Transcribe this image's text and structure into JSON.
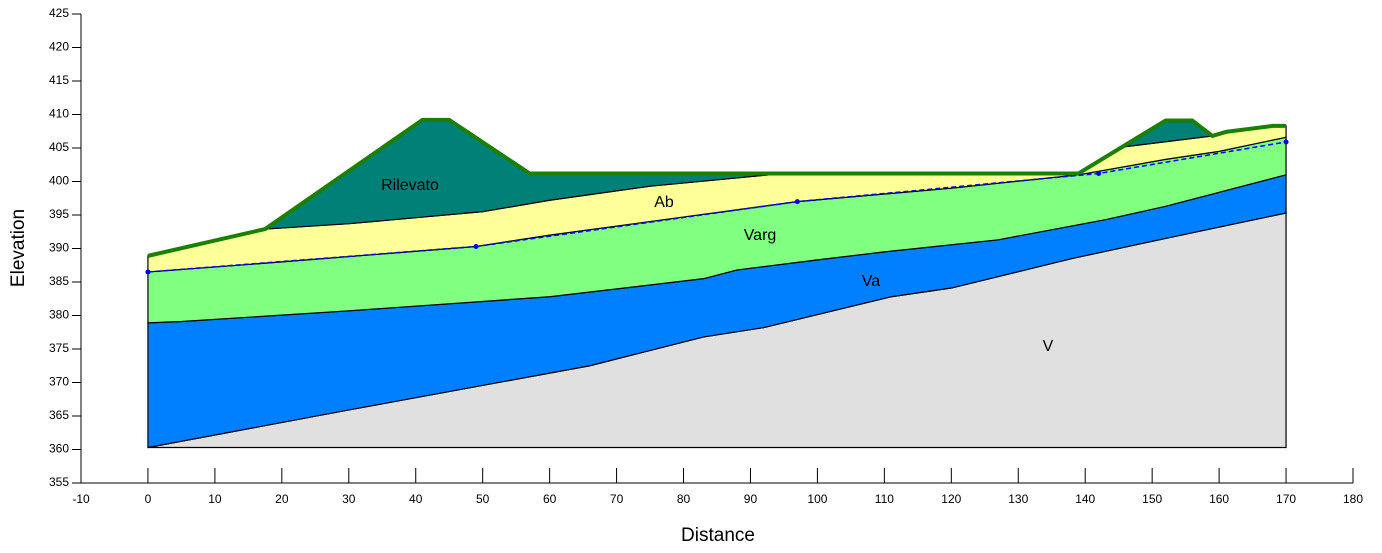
{
  "chart_data": {
    "type": "section",
    "xlabel": "Distance",
    "ylabel": "Elevation",
    "xlim": [
      -10,
      180
    ],
    "ylim": [
      355,
      425
    ],
    "xticks": [
      -10,
      0,
      10,
      20,
      30,
      40,
      50,
      60,
      70,
      80,
      90,
      100,
      110,
      120,
      130,
      140,
      150,
      160,
      170,
      180
    ],
    "yticks": [
      355,
      360,
      365,
      370,
      375,
      380,
      385,
      390,
      395,
      400,
      405,
      410,
      415,
      420,
      425
    ],
    "layers": [
      {
        "name": "V",
        "color": "#e0e0e0",
        "x": [
          0,
          30,
          66,
          83,
          92,
          111,
          120,
          138,
          152,
          170,
          170,
          0
        ],
        "y": [
          360.3,
          365.9,
          372.5,
          376.8,
          378.2,
          382.8,
          384.1,
          388.5,
          391.5,
          395.3,
          360.3,
          360.3
        ]
      },
      {
        "name": "Va",
        "color": "#0080ff",
        "x": [
          0,
          5,
          30,
          60,
          83,
          88,
          100,
          110,
          127,
          143,
          152,
          170,
          170,
          152,
          138,
          120,
          111,
          92,
          83,
          66,
          30,
          0
        ],
        "y": [
          378.9,
          379.1,
          380.7,
          382.8,
          385.5,
          386.8,
          388.3,
          389.5,
          391.3,
          394.3,
          396.3,
          401,
          395.3,
          391.5,
          388.5,
          384.1,
          382.8,
          378.2,
          376.8,
          372.5,
          365.9,
          360.3
        ]
      },
      {
        "name": "Varg",
        "color": "#80ff80",
        "x": [
          0,
          20,
          49,
          60,
          97,
          120,
          139,
          152,
          160,
          170,
          170,
          152,
          143,
          127,
          110,
          100,
          88,
          83,
          60,
          30,
          5,
          0
        ],
        "y": [
          386.5,
          388,
          390.3,
          392,
          397,
          399,
          401,
          403.3,
          404.5,
          406.6,
          401,
          396.3,
          394.3,
          391.3,
          389.5,
          388.3,
          386.8,
          385.5,
          382.8,
          380.7,
          379.1,
          378.9
        ]
      },
      {
        "name": "Ab",
        "color": "#ffff99",
        "x": [
          0,
          17.5,
          30,
          50,
          60,
          75,
          95,
          139,
          146,
          159,
          161,
          168,
          170,
          170,
          160,
          152,
          139,
          120,
          97,
          60,
          49,
          20,
          0
        ],
        "y": [
          388.9,
          392.9,
          393.7,
          395.5,
          397.2,
          399.3,
          401.2,
          401.2,
          405.2,
          406.8,
          407.4,
          408.3,
          408.3,
          406.6,
          404.5,
          403.3,
          401,
          399,
          397,
          392,
          390.3,
          388,
          386.5
        ]
      },
      {
        "name": "Rilevato",
        "color": "#008077",
        "x": [
          17.5,
          41,
          45,
          57,
          95,
          75,
          60,
          50,
          30,
          null,
          146,
          152,
          156,
          159
        ],
        "y": [
          392.9,
          409.2,
          409.2,
          401.2,
          401.2,
          399.3,
          397.2,
          395.5,
          393.7,
          null,
          405.2,
          409.1,
          409.1,
          406.8
        ]
      }
    ],
    "surface": {
      "color": "#1a8000",
      "x": [
        0,
        17.5,
        41,
        45,
        57,
        139,
        152,
        156,
        159,
        161,
        168,
        170
      ],
      "y": [
        388.9,
        392.9,
        409.2,
        409.2,
        401.2,
        401.2,
        409.1,
        409.1,
        406.8,
        407.4,
        408.3,
        408.3
      ]
    },
    "piezometric": {
      "color": "#0000ff",
      "x": [
        0,
        49,
        97,
        142,
        170
      ],
      "y": [
        386.5,
        390.3,
        397,
        401.2,
        405.9
      ]
    }
  }
}
